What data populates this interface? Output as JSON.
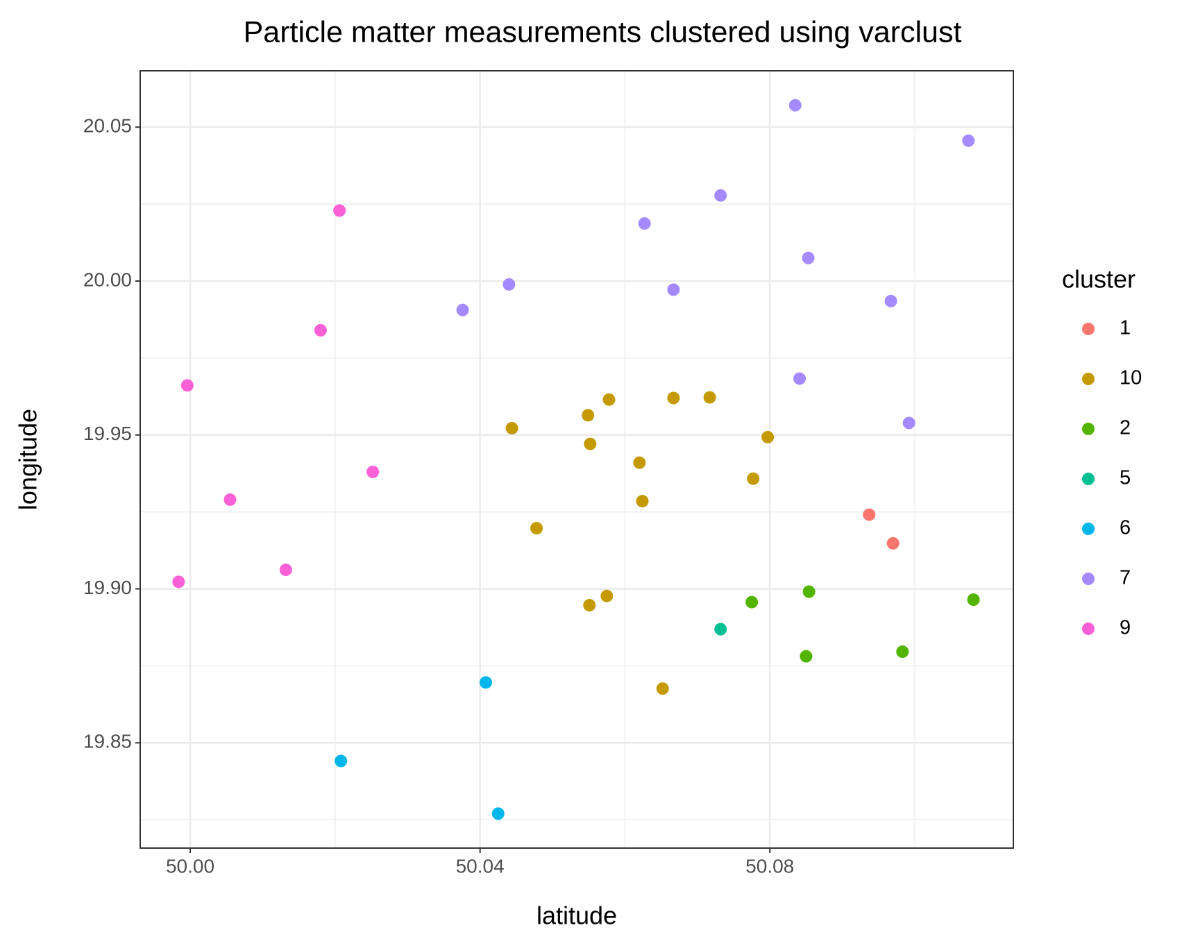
{
  "chart_data": {
    "type": "scatter",
    "title": "Particle matter measurements clustered using varclust",
    "x_label": "latitude",
    "y_label": "longitude",
    "legend_title": "cluster",
    "xlim": [
      49.9931,
      50.1136
    ],
    "ylim": [
      19.8158,
      20.0683
    ],
    "xticks": [
      {
        "value": 50,
        "label": "50.00"
      },
      50.04,
      50.08
    ],
    "yticks": [
      19.85,
      {
        "value": 19.9,
        "label": "19.90"
      },
      19.95,
      {
        "value": 20,
        "label": "20.00"
      },
      20.05
    ],
    "grid": true,
    "legend": "right",
    "series": [
      {
        "name": "1",
        "color": "#F8766D",
        "x": [
          50.0937,
          50.097
        ],
        "values": [
          19.9241,
          19.9148
        ]
      },
      {
        "name": "10",
        "color": "#C49A00",
        "x": [
          50.0444,
          50.0549,
          50.0578,
          50.0667,
          50.0717,
          50.0552,
          50.0797,
          50.062,
          50.0777,
          50.0624,
          50.0478,
          50.0575,
          50.0551,
          50.0652
        ],
        "values": [
          19.9522,
          19.9564,
          19.9615,
          19.962,
          19.9622,
          19.9471,
          19.9493,
          19.941,
          19.9358,
          19.9285,
          19.9197,
          19.8977,
          19.8947,
          19.8676
        ]
      },
      {
        "name": "2",
        "color": "#53B400",
        "x": [
          50.0854,
          50.0775,
          50.1081,
          50.085,
          50.0983
        ],
        "values": [
          19.8991,
          19.8957,
          19.8965,
          19.8781,
          19.8796
        ]
      },
      {
        "name": "5",
        "color": "#00C094",
        "x": [
          50.0732
        ],
        "values": [
          19.8869
        ]
      },
      {
        "name": "6",
        "color": "#00B6EB",
        "x": [
          50.0408,
          50.0208,
          50.0425
        ],
        "values": [
          19.8696,
          19.8441,
          19.827
        ]
      },
      {
        "name": "7",
        "color": "#A58AFF",
        "x": [
          50.0835,
          50.1074,
          50.0732,
          50.0627,
          50.0853,
          50.044,
          50.0667,
          50.0376,
          50.0967,
          50.0841,
          50.0992
        ],
        "values": [
          20.0571,
          20.0456,
          20.0278,
          20.0187,
          20.0075,
          19.9989,
          19.9972,
          19.9906,
          19.9935,
          19.9683,
          19.9539
        ]
      },
      {
        "name": "9",
        "color": "#FB61D7",
        "x": [
          50.0206,
          50.018,
          49.9996,
          50.0252,
          50.0055,
          50.0132,
          49.9984
        ],
        "values": [
          20.0229,
          19.984,
          19.9661,
          19.938,
          19.929,
          19.9062,
          19.9023
        ]
      }
    ]
  }
}
